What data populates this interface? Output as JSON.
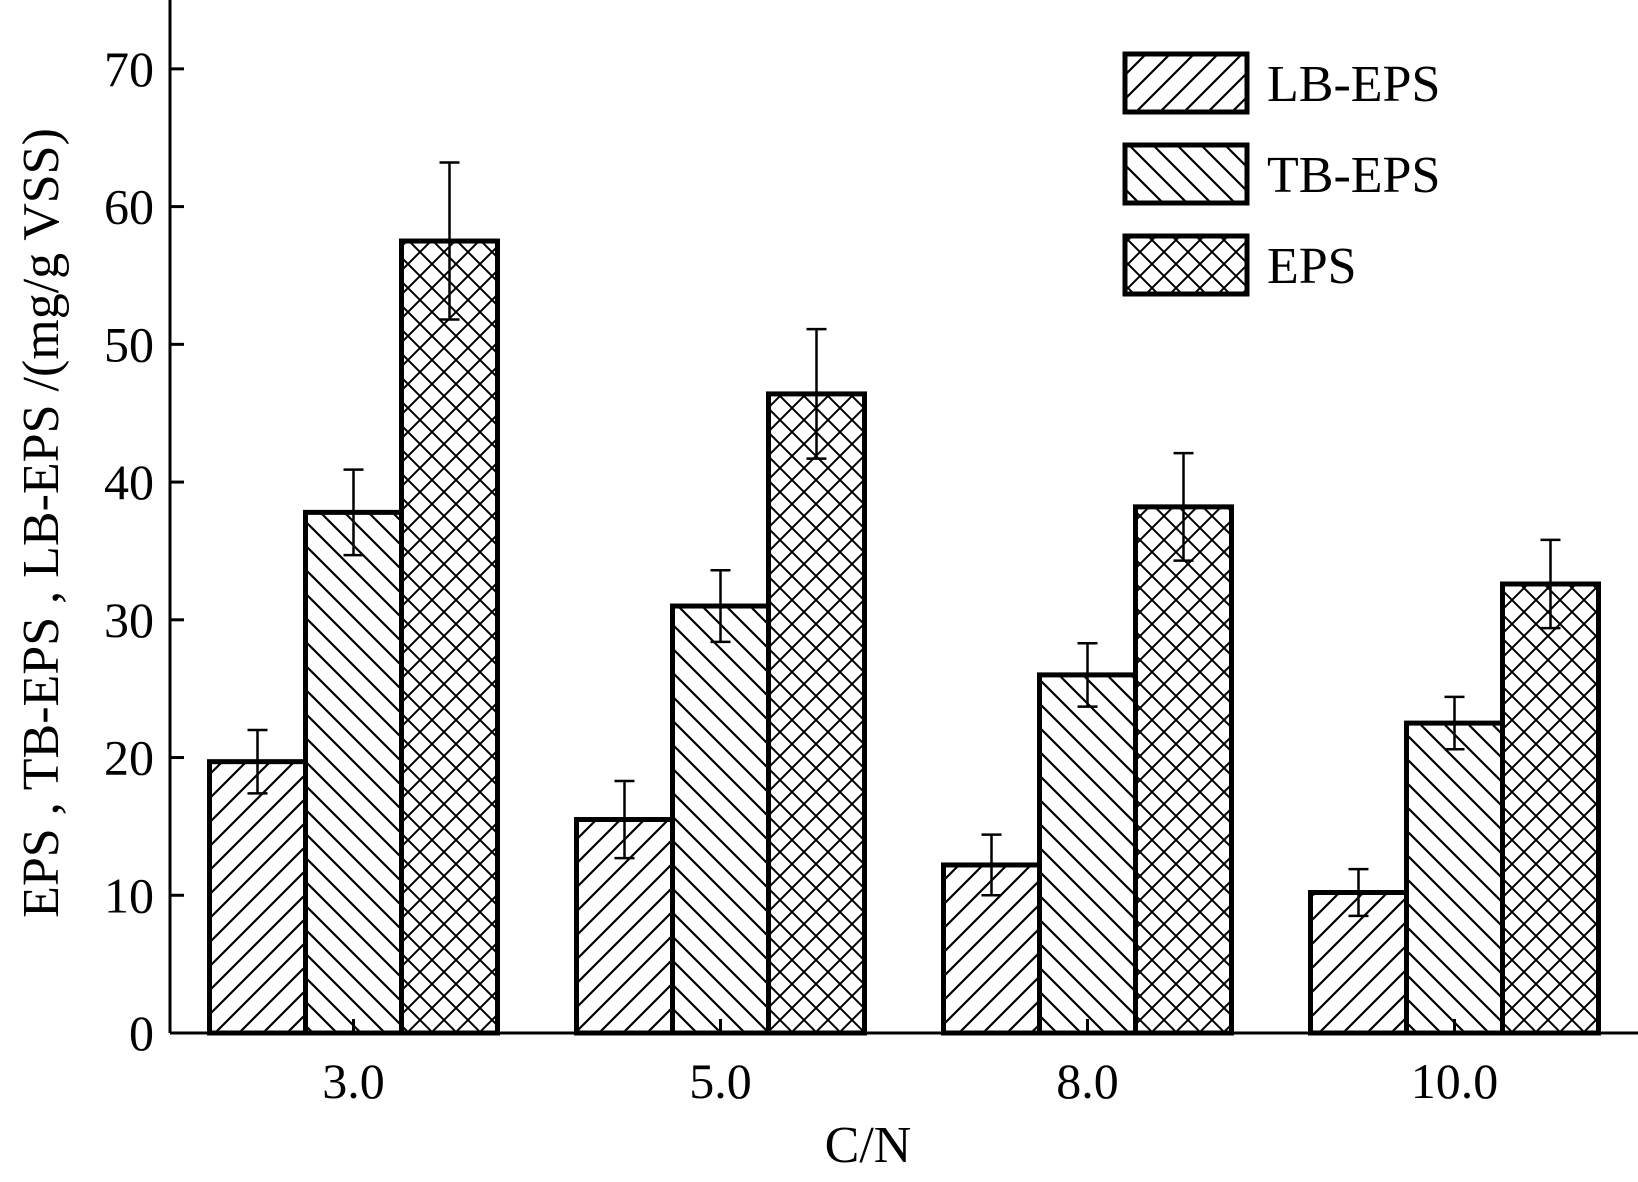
{
  "chart_data": {
    "type": "bar",
    "title": "",
    "xlabel": "C/N",
    "ylabel": "EPS , TB-EPS , LB-EPS /(mg/g VSS)",
    "categories": [
      "3.0",
      "5.0",
      "8.0",
      "10.0"
    ],
    "ylim": [
      0,
      75
    ],
    "yticks": [
      0,
      10,
      20,
      30,
      40,
      50,
      60,
      70
    ],
    "ytick_labels": [
      "0",
      "10",
      "20",
      "30",
      "40",
      "50",
      "60",
      "70"
    ],
    "legend_position": "top-right",
    "grid": false,
    "series": [
      {
        "name": "LB-EPS",
        "pattern": "forward-hatch",
        "values": [
          19.7,
          15.5,
          12.2,
          10.2
        ],
        "errors": [
          2.3,
          2.8,
          2.2,
          1.7
        ]
      },
      {
        "name": "TB-EPS",
        "pattern": "back-hatch",
        "values": [
          37.8,
          31.0,
          26.0,
          22.5
        ],
        "errors": [
          3.1,
          2.6,
          2.3,
          1.9
        ]
      },
      {
        "name": "EPS",
        "pattern": "cross-hatch",
        "values": [
          57.5,
          46.4,
          38.2,
          32.6
        ],
        "errors": [
          5.7,
          4.7,
          3.9,
          3.2
        ]
      }
    ]
  }
}
